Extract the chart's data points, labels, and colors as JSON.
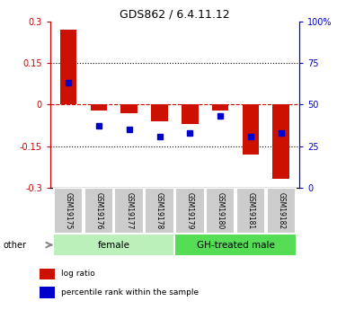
{
  "title": "GDS862 / 6.4.11.12",
  "samples": [
    "GSM19175",
    "GSM19176",
    "GSM19177",
    "GSM19178",
    "GSM19179",
    "GSM19180",
    "GSM19181",
    "GSM19182"
  ],
  "log_ratio": [
    0.27,
    -0.02,
    -0.03,
    -0.06,
    -0.07,
    -0.02,
    -0.18,
    -0.27
  ],
  "percentile_rank_pct": [
    63,
    37,
    35,
    31,
    33,
    43,
    31,
    33
  ],
  "groups": [
    {
      "label": "female",
      "start": 0,
      "end": 4,
      "color": "#bbf0bb"
    },
    {
      "label": "GH-treated male",
      "start": 4,
      "end": 8,
      "color": "#55dd55"
    }
  ],
  "other_label": "other",
  "ylim_left": [
    -0.3,
    0.3
  ],
  "yticks_left": [
    -0.3,
    -0.15,
    0,
    0.15,
    0.3
  ],
  "ytick_labels_left": [
    "-0.3",
    "-0.15",
    "0",
    "0.15",
    "0.3"
  ],
  "ylim_right": [
    0,
    100
  ],
  "yticks_right": [
    0,
    25,
    50,
    75,
    100
  ],
  "ytick_labels_right": [
    "0",
    "25",
    "50",
    "75",
    "100%"
  ],
  "left_axis_color": "#cc0000",
  "right_axis_color": "#0000cc",
  "bar_color": "#cc1100",
  "dot_color": "#0000cc",
  "hline_color": "#cc0000",
  "grid_color": "#000000",
  "legend_items": [
    "log ratio",
    "percentile rank within the sample"
  ],
  "legend_colors": [
    "#cc1100",
    "#0000cc"
  ],
  "bar_width": 0.55
}
